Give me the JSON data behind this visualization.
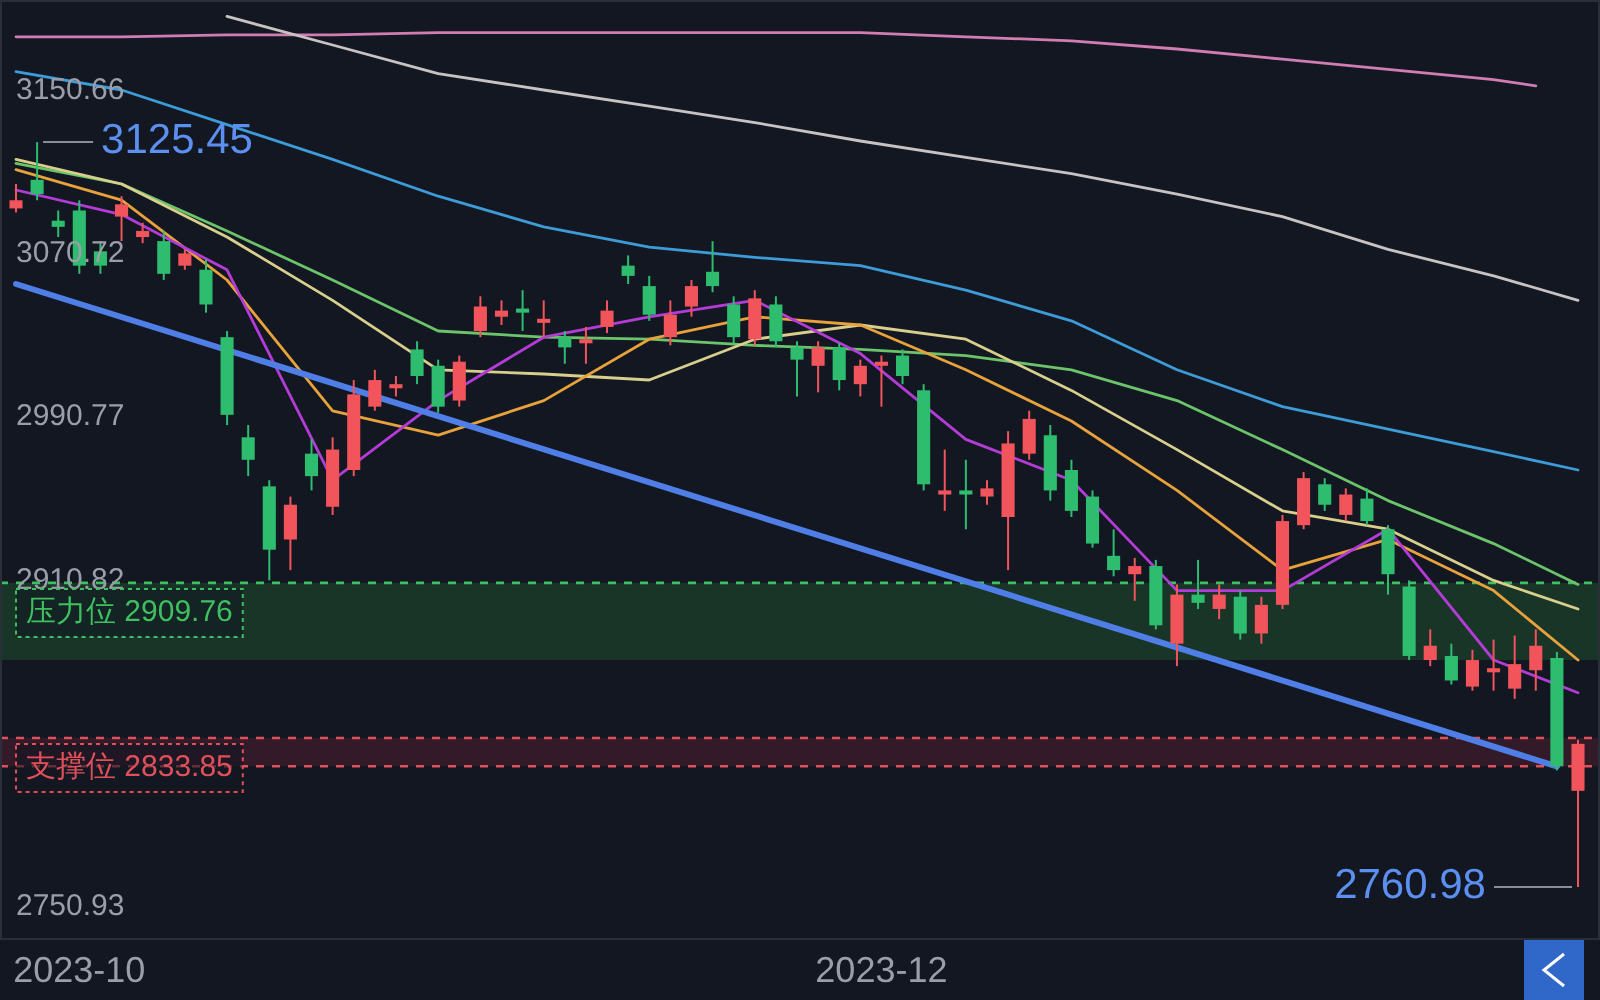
{
  "chart_data": {
    "type": "candlestick",
    "categories": [
      null,
      null,
      null,
      "2023-10",
      null,
      null,
      null,
      null,
      null,
      null,
      null,
      null,
      null,
      null,
      null,
      null,
      null,
      null,
      null,
      null,
      null,
      null,
      null,
      null,
      null,
      null,
      null,
      null,
      null,
      null,
      null,
      null,
      null,
      null,
      null,
      null,
      null,
      null,
      null,
      null,
      null,
      "2023-12",
      null,
      null,
      null,
      null,
      null,
      null,
      null,
      null,
      null,
      null,
      null,
      null,
      null,
      null,
      null,
      null,
      null,
      null,
      null,
      null,
      null,
      null,
      null,
      null,
      null,
      null,
      null,
      null,
      null,
      null,
      null,
      null,
      null
    ],
    "ohlc": [
      [
        3093,
        3105,
        3091,
        3097
      ],
      [
        3107,
        3125.45,
        3097,
        3100
      ],
      [
        3087,
        3092,
        3079,
        3084
      ],
      [
        3092,
        3097,
        3061,
        3065
      ],
      [
        3072,
        3077,
        3061,
        3065
      ],
      [
        3089,
        3099,
        3077,
        3095
      ],
      [
        3079,
        3086,
        3076,
        3082
      ],
      [
        3077,
        3082,
        3058,
        3061
      ],
      [
        3065,
        3073,
        3063,
        3071
      ],
      [
        3063,
        3068,
        3042,
        3046
      ],
      [
        3030,
        3033,
        2987,
        2992
      ],
      [
        2981,
        2987,
        2962,
        2970
      ],
      [
        2957,
        2960,
        2911,
        2926
      ],
      [
        2931,
        2952,
        2916,
        2948
      ],
      [
        2973,
        2980,
        2955,
        2962
      ],
      [
        2947,
        2981,
        2943,
        2975
      ],
      [
        2965,
        3009,
        2962,
        3002
      ],
      [
        2996,
        3014,
        2994,
        3009
      ],
      [
        3005,
        3011,
        3001,
        3007
      ],
      [
        3024,
        3028,
        3007,
        3011
      ],
      [
        3016,
        3019,
        2993,
        2996
      ],
      [
        2999,
        3021,
        2996,
        3018
      ],
      [
        3033,
        3050,
        3030,
        3045
      ],
      [
        3040,
        3048,
        3036,
        3043
      ],
      [
        3044,
        3053,
        3033,
        3042
      ],
      [
        3037,
        3048,
        3030,
        3039
      ],
      [
        3030,
        3033,
        3017,
        3025
      ],
      [
        3027,
        3035,
        3017,
        3029
      ],
      [
        3035,
        3048,
        3032,
        3043
      ],
      [
        3065,
        3070,
        3056,
        3060
      ],
      [
        3055,
        3060,
        3038,
        3041
      ],
      [
        3030,
        3048,
        3026,
        3041
      ],
      [
        3045,
        3058,
        3040,
        3055
      ],
      [
        3062,
        3077,
        3052,
        3055
      ],
      [
        3046,
        3050,
        3027,
        3030
      ],
      [
        3029,
        3053,
        3026,
        3049
      ],
      [
        3046,
        3050,
        3025,
        3028
      ],
      [
        3025,
        3028,
        3001,
        3019
      ],
      [
        3016,
        3028,
        3003,
        3025
      ],
      [
        3025,
        3027,
        3004,
        3009
      ],
      [
        3007,
        3019,
        3001,
        3016
      ],
      [
        3016,
        3021,
        2996,
        3018
      ],
      [
        3021,
        3024,
        3007,
        3011
      ],
      [
        3004,
        3007,
        2955,
        2958
      ],
      [
        2953,
        2975,
        2945,
        2955
      ],
      [
        2955,
        2970,
        2936,
        2953
      ],
      [
        2952,
        2960,
        2948,
        2956
      ],
      [
        2942,
        2984,
        2916,
        2978
      ],
      [
        2973,
        2994,
        2970,
        2990
      ],
      [
        2982,
        2987,
        2950,
        2955
      ],
      [
        2965,
        2970,
        2942,
        2945
      ],
      [
        2952,
        2955,
        2927,
        2929
      ],
      [
        2923,
        2936,
        2913,
        2916
      ],
      [
        2914,
        2922,
        2901,
        2918
      ],
      [
        2918,
        2921,
        2887,
        2889
      ],
      [
        2880,
        2909,
        2869,
        2904
      ],
      [
        2904,
        2921,
        2897,
        2900
      ],
      [
        2897,
        2909,
        2892,
        2904
      ],
      [
        2903,
        2906,
        2882,
        2885
      ],
      [
        2885,
        2903,
        2880,
        2899
      ],
      [
        2899,
        2943,
        2897,
        2940
      ],
      [
        2938,
        2964,
        2936,
        2961
      ],
      [
        2958,
        2961,
        2945,
        2948
      ],
      [
        2943,
        2956,
        2940,
        2953
      ],
      [
        2951,
        2956,
        2938,
        2940
      ],
      [
        2936,
        2938,
        2904,
        2914
      ],
      [
        2908,
        2911,
        2872,
        2874
      ],
      [
        2872,
        2887,
        2869,
        2879
      ],
      [
        2874,
        2880,
        2860,
        2862
      ],
      [
        2859,
        2877,
        2857,
        2872
      ],
      [
        2866,
        2882,
        2857,
        2868
      ],
      [
        2858,
        2884,
        2853,
        2870
      ],
      [
        2867,
        2887,
        2857,
        2879
      ],
      [
        2873,
        2876,
        2818,
        2820
      ],
      [
        2808,
        2833,
        2760.98,
        2831
      ]
    ],
    "colors": [
      "#f2545b",
      "#2ebd6f",
      "#2ebd6f",
      "#2ebd6f",
      "#2ebd6f",
      "#f2545b",
      "#f2545b",
      "#2ebd6f",
      "#f2545b",
      "#2ebd6f",
      "#2ebd6f",
      "#2ebd6f",
      "#2ebd6f",
      "#f2545b",
      "#2ebd6f",
      "#f2545b",
      "#f2545b",
      "#f2545b",
      "#f2545b",
      "#2ebd6f",
      "#2ebd6f",
      "#f2545b",
      "#f2545b",
      "#f2545b",
      "#2ebd6f",
      "#f2545b",
      "#2ebd6f",
      "#f2545b",
      "#f2545b",
      "#2ebd6f",
      "#2ebd6f",
      "#f2545b",
      "#f2545b",
      "#2ebd6f",
      "#2ebd6f",
      "#f2545b",
      "#2ebd6f",
      "#2ebd6f",
      "#f2545b",
      "#2ebd6f",
      "#f2545b",
      "#f2545b",
      "#2ebd6f",
      "#2ebd6f",
      "#f2545b",
      "#2ebd6f",
      "#f2545b",
      "#f2545b",
      "#f2545b",
      "#2ebd6f",
      "#2ebd6f",
      "#2ebd6f",
      "#2ebd6f",
      "#f2545b",
      "#2ebd6f",
      "#f2545b",
      "#2ebd6f",
      "#f2545b",
      "#2ebd6f",
      "#f2545b",
      "#f2545b",
      "#f2545b",
      "#2ebd6f",
      "#f2545b",
      "#2ebd6f",
      "#2ebd6f",
      "#2ebd6f",
      "#f2545b",
      "#2ebd6f",
      "#f2545b",
      "#f2545b",
      "#f2545b",
      "#f2545b",
      "#2ebd6f",
      "#f2545b"
    ],
    "series": [
      {
        "type": "line",
        "color": "#d27cb4",
        "values": [
          3177,
          null,
          null,
          null,
          null,
          3177,
          null,
          null,
          null,
          null,
          3178,
          null,
          null,
          null,
          null,
          3178,
          null,
          null,
          null,
          null,
          3179,
          null,
          null,
          null,
          null,
          3179,
          null,
          null,
          null,
          null,
          3179,
          null,
          null,
          null,
          null,
          3179,
          null,
          null,
          null,
          null,
          3179,
          null,
          null,
          null,
          null,
          3177,
          null,
          null,
          null,
          null,
          3175,
          null,
          null,
          null,
          null,
          3171,
          null,
          null,
          null,
          null,
          3166,
          null,
          null,
          null,
          null,
          3161,
          null,
          null,
          null,
          null,
          3156,
          null,
          3153,
          null,
          null
        ]
      },
      {
        "type": "line",
        "color": "#c8c2c2",
        "values": [
          null,
          null,
          null,
          null,
          null,
          null,
          null,
          null,
          null,
          null,
          3187,
          null,
          null,
          null,
          null,
          3173,
          null,
          null,
          null,
          null,
          3159,
          null,
          null,
          null,
          null,
          3151,
          null,
          null,
          null,
          null,
          3143,
          null,
          null,
          null,
          null,
          3135,
          null,
          null,
          null,
          null,
          3126,
          null,
          null,
          null,
          null,
          3118,
          null,
          null,
          null,
          null,
          3110,
          null,
          null,
          null,
          null,
          3100,
          null,
          null,
          null,
          null,
          3089,
          null,
          null,
          null,
          null,
          3073,
          null,
          null,
          null,
          null,
          3060,
          null,
          null,
          null,
          3048
        ]
      },
      {
        "type": "line",
        "color": "#3d9bd8",
        "values": [
          3160,
          null,
          null,
          null,
          null,
          3151,
          null,
          null,
          null,
          null,
          3134,
          null,
          null,
          null,
          null,
          3117,
          null,
          null,
          null,
          null,
          3099,
          null,
          null,
          null,
          null,
          3084,
          null,
          null,
          null,
          null,
          3074,
          null,
          null,
          null,
          null,
          3069,
          null,
          null,
          null,
          null,
          3065,
          null,
          null,
          null,
          null,
          3053,
          null,
          null,
          null,
          null,
          3038,
          null,
          null,
          null,
          null,
          3014,
          null,
          null,
          null,
          null,
          2996,
          null,
          null,
          null,
          null,
          2985,
          null,
          null,
          null,
          null,
          2974,
          null,
          null,
          null,
          2965
        ]
      },
      {
        "type": "line",
        "color": "#6cc46a",
        "values": [
          3115,
          null,
          null,
          null,
          null,
          3105,
          null,
          null,
          null,
          null,
          3082,
          null,
          null,
          null,
          null,
          3058,
          null,
          null,
          null,
          null,
          3033,
          null,
          null,
          null,
          null,
          3030,
          null,
          null,
          null,
          null,
          3029,
          null,
          null,
          null,
          null,
          3026,
          null,
          null,
          null,
          null,
          3024,
          null,
          null,
          null,
          null,
          3021,
          null,
          null,
          null,
          null,
          3014,
          null,
          null,
          null,
          null,
          2999,
          null,
          null,
          null,
          null,
          2975,
          null,
          null,
          null,
          null,
          2950,
          null,
          null,
          null,
          null,
          2929,
          null,
          null,
          null,
          2909
        ]
      },
      {
        "type": "line",
        "color": "#d9cf8c",
        "values": [
          3117,
          null,
          null,
          null,
          null,
          3105,
          null,
          null,
          null,
          null,
          3079,
          null,
          null,
          null,
          null,
          3048,
          null,
          null,
          null,
          null,
          3014,
          null,
          null,
          null,
          null,
          3012,
          null,
          null,
          null,
          null,
          3009,
          null,
          null,
          null,
          null,
          3029,
          null,
          null,
          null,
          null,
          3036,
          null,
          null,
          null,
          null,
          3029,
          null,
          null,
          null,
          null,
          3004,
          null,
          null,
          null,
          null,
          2975,
          null,
          null,
          null,
          null,
          2945,
          null,
          null,
          null,
          null,
          2936,
          null,
          null,
          null,
          null,
          2911,
          null,
          null,
          null,
          2897
        ]
      },
      {
        "type": "line",
        "color": "#e8a23c",
        "values": [
          3112,
          null,
          null,
          null,
          null,
          3097,
          null,
          null,
          null,
          null,
          3058,
          null,
          null,
          null,
          null,
          2994,
          null,
          null,
          null,
          null,
          2982,
          null,
          null,
          null,
          null,
          2999,
          null,
          null,
          null,
          null,
          3029,
          null,
          null,
          null,
          null,
          3040,
          null,
          null,
          null,
          null,
          3036,
          null,
          null,
          null,
          null,
          3014,
          null,
          null,
          null,
          null,
          2989,
          null,
          null,
          null,
          null,
          2955,
          null,
          null,
          null,
          null,
          2916,
          null,
          null,
          null,
          null,
          2931,
          null,
          null,
          null,
          null,
          2906,
          null,
          null,
          null,
          2872
        ]
      },
      {
        "type": "line",
        "color": "#b43cd6",
        "values": [
          3102,
          null,
          null,
          null,
          null,
          3090,
          null,
          null,
          null,
          null,
          3063,
          null,
          null,
          null,
          null,
          2960,
          null,
          null,
          null,
          null,
          2999,
          null,
          null,
          null,
          null,
          3030,
          null,
          null,
          null,
          null,
          3040,
          null,
          null,
          null,
          null,
          3048,
          null,
          null,
          null,
          null,
          3022,
          null,
          null,
          null,
          null,
          2980,
          null,
          null,
          null,
          null,
          2960,
          null,
          null,
          null,
          null,
          2906,
          null,
          null,
          null,
          null,
          2906,
          null,
          null,
          null,
          null,
          2936,
          null,
          null,
          null,
          null,
          2872,
          null,
          null,
          null,
          2856
        ]
      },
      {
        "type": "line",
        "color": "#4f7fe6",
        "values": [
          3056,
          null,
          null,
          null,
          null,
          null,
          null,
          null,
          null,
          null,
          null,
          null,
          null,
          null,
          null,
          null,
          null,
          null,
          null,
          null,
          null,
          null,
          null,
          null,
          null,
          null,
          null,
          null,
          null,
          null,
          null,
          null,
          null,
          null,
          null,
          null,
          null,
          null,
          null,
          null,
          null,
          null,
          null,
          null,
          null,
          null,
          null,
          null,
          null,
          null,
          null,
          null,
          null,
          null,
          null,
          null,
          null,
          null,
          null,
          null,
          null,
          null,
          null,
          null,
          null,
          null,
          null,
          null,
          null,
          null,
          null,
          null,
          null,
          2820,
          null
        ]
      }
    ],
    "ylim": [
      2735,
      3195
    ],
    "yticks": [
      3150.66,
      3070.72,
      2990.77,
      2910.82,
      2750.93
    ],
    "ref_lines": [
      {
        "axis": "y",
        "value": 2909.76,
        "label": "压力位 2909.76",
        "color": "#3fbf5f",
        "line_style": "dashed"
      },
      {
        "axis": "y",
        "value": 2833.85,
        "label": "支撑位 2833.85",
        "color": "#e0505a",
        "line_style": "dashed"
      },
      {
        "axis": "y",
        "value": 2820,
        "label": null,
        "color": "#e0505a",
        "line_style": "dashed"
      }
    ],
    "bands": [
      {
        "axis": "y",
        "from": 2909.76,
        "to": 2872,
        "label": null,
        "color": "#1f5a30"
      },
      {
        "axis": "y",
        "from": 2833.85,
        "to": 2820,
        "label": null,
        "color": "#5a2030"
      }
    ],
    "annotations": [
      "3125.45",
      "2760.98"
    ]
  }
}
